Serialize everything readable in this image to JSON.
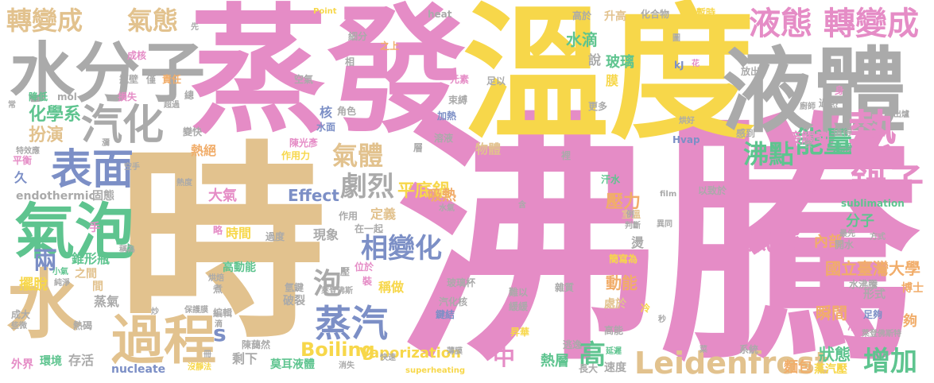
{
  "colors": {
    "pink": "#e58cc6",
    "yellow": "#f7d74a",
    "tan": "#e2c28e",
    "gray": "#aaaaaa",
    "blue": "#7c8fc6",
    "green": "#5ec48f",
    "orange": "#f1ad6a",
    "red": "#e9787a"
  },
  "words": [
    {
      "text": "時",
      "color": "tan"
    },
    {
      "text": "沸騰",
      "color": "pink"
    },
    {
      "text": "蒸發",
      "color": "pink"
    },
    {
      "text": "溫度",
      "color": "yellow"
    },
    {
      "text": "液體",
      "color": "gray"
    },
    {
      "text": "水分子",
      "color": "gray"
    },
    {
      "text": "水",
      "color": "tan"
    },
    {
      "text": "氣泡",
      "color": "green"
    },
    {
      "text": "表面",
      "color": "blue"
    },
    {
      "text": "汽化",
      "color": "gray"
    },
    {
      "text": "過程",
      "color": "tan"
    },
    {
      "text": "轉變成",
      "color": "tan"
    },
    {
      "text": "氣態",
      "color": "tan"
    },
    {
      "text": "液態",
      "color": "pink"
    },
    {
      "text": "轉變成",
      "color": "pink"
    },
    {
      "text": "熱",
      "color": "pink"
    },
    {
      "text": "鍋子",
      "color": "pink"
    },
    {
      "text": "能量",
      "color": "green"
    },
    {
      "text": "沸點",
      "color": "green"
    },
    {
      "text": "氣體",
      "color": "tan"
    },
    {
      "text": "劇烈",
      "color": "gray"
    },
    {
      "text": "蒸汽",
      "color": "blue"
    },
    {
      "text": "相變化",
      "color": "blue"
    },
    {
      "text": "氣態",
      "color": "pink"
    },
    {
      "text": "Leidenfrost",
      "color": "tan"
    },
    {
      "text": "增加",
      "color": "green"
    },
    {
      "text": "Boiling",
      "color": "yellow"
    },
    {
      "text": "Vaporization",
      "color": "yellow"
    },
    {
      "text": "Effect",
      "color": "blue"
    },
    {
      "text": "中",
      "color": "pink"
    },
    {
      "text": "高",
      "color": "green"
    },
    {
      "text": "s",
      "color": "blue"
    },
    {
      "text": "泡",
      "color": "gray"
    },
    {
      "text": "兩",
      "color": "blue"
    },
    {
      "text": "化學系",
      "color": "green"
    },
    {
      "text": "扮演",
      "color": "tan"
    },
    {
      "text": "平底鍋",
      "color": "yellow"
    },
    {
      "text": "國立臺灣大學",
      "color": "orange"
    },
    {
      "text": "壓力",
      "color": "orange"
    },
    {
      "text": "動能",
      "color": "orange"
    },
    {
      "text": "狀態",
      "color": "green"
    },
    {
      "text": "麵包",
      "color": "orange"
    },
    {
      "text": "蒸汽壓",
      "color": "yellow"
    },
    {
      "text": "接觸到",
      "color": "pink"
    },
    {
      "text": "水滴",
      "color": "green"
    },
    {
      "text": "玻璃",
      "color": "green"
    },
    {
      "text": "熱層",
      "color": "green"
    },
    {
      "text": "瞬間",
      "color": "orange"
    },
    {
      "text": "內部",
      "color": "orange"
    },
    {
      "text": "分子",
      "color": "green"
    },
    {
      "text": "吸熱",
      "color": "orange"
    },
    {
      "text": "時間",
      "color": "yellow"
    },
    {
      "text": "大氣",
      "color": "pink"
    },
    {
      "text": "錐形瓶",
      "color": "green"
    },
    {
      "text": "擺脫",
      "color": "yellow"
    },
    {
      "text": "蒸氣",
      "color": "gray"
    },
    {
      "text": "存活",
      "color": "gray"
    },
    {
      "text": "環境",
      "color": "green"
    },
    {
      "text": "外界",
      "color": "pink"
    },
    {
      "text": "nucleate",
      "color": "blue"
    },
    {
      "text": "endothermic",
      "color": "gray"
    },
    {
      "text": "sublimation",
      "color": "green"
    },
    {
      "text": "Hvap",
      "color": "blue"
    },
    {
      "text": "莫耳液體",
      "color": "green"
    },
    {
      "text": "剩下",
      "color": "gray"
    },
    {
      "text": "定義",
      "color": "tan"
    },
    {
      "text": "現象",
      "color": "gray"
    },
    {
      "text": "稱做",
      "color": "yellow"
    },
    {
      "text": "物體",
      "color": "tan"
    },
    {
      "text": "溶液",
      "color": "gray"
    },
    {
      "text": "升高",
      "color": "tan"
    },
    {
      "text": "化合物",
      "color": "gray"
    },
    {
      "text": "暫時",
      "color": "yellow"
    },
    {
      "text": "速度",
      "color": "gray"
    },
    {
      "text": "長大",
      "color": "gray"
    },
    {
      "text": "逃逸",
      "color": "gray"
    },
    {
      "text": "熱絕",
      "color": "orange"
    },
    {
      "text": "固態",
      "color": "gray"
    },
    {
      "text": "變快",
      "color": "gray"
    },
    {
      "text": "陳光彥",
      "color": "pink"
    },
    {
      "text": "作用力",
      "color": "yellow"
    },
    {
      "text": "高動能",
      "color": "green"
    },
    {
      "text": "破裂",
      "color": "gray"
    },
    {
      "text": "鍵結",
      "color": "blue"
    },
    {
      "text": "昇華",
      "color": "yellow"
    },
    {
      "text": "緩緩",
      "color": "gray"
    },
    {
      "text": "處於",
      "color": "tan"
    },
    {
      "text": "氣壓",
      "color": "pink"
    },
    {
      "text": "高能",
      "color": "gray"
    },
    {
      "text": "系統",
      "color": "gray"
    },
    {
      "text": "形式",
      "color": "gray"
    },
    {
      "text": "博士",
      "color": "orange"
    },
    {
      "text": "夠",
      "color": "orange"
    },
    {
      "text": "足夠",
      "color": "blue"
    },
    {
      "text": "液",
      "color": "pink"
    },
    {
      "text": "值得",
      "color": "gray"
    },
    {
      "text": "光滑",
      "color": "green"
    },
    {
      "text": "感到",
      "color": "gray"
    },
    {
      "text": "接觸面",
      "color": "pink"
    },
    {
      "text": "開水",
      "color": "gray"
    },
    {
      "text": "燙",
      "color": "gray"
    },
    {
      "text": "膜",
      "color": "yellow"
    },
    {
      "text": "說",
      "color": "gray"
    },
    {
      "text": "束縛",
      "color": "gray"
    },
    {
      "text": "加熱",
      "color": "blue"
    },
    {
      "text": "元素",
      "color": "pink"
    },
    {
      "text": "足以",
      "color": "gray"
    },
    {
      "text": "更多",
      "color": "gray"
    },
    {
      "text": "角色",
      "color": "gray"
    },
    {
      "text": "核",
      "color": "blue"
    },
    {
      "text": "水面",
      "color": "blue"
    },
    {
      "text": "空氣",
      "color": "gray"
    },
    {
      "text": "細分",
      "color": "gray"
    },
    {
      "text": "之上",
      "color": "orange"
    },
    {
      "text": "高於",
      "color": "gray"
    },
    {
      "text": "責任",
      "color": "orange"
    },
    {
      "text": "瓶壁",
      "color": "gray"
    },
    {
      "text": "成核",
      "color": "pink"
    },
    {
      "text": "降低",
      "color": "green"
    },
    {
      "text": "mol",
      "color": "gray"
    },
    {
      "text": "損失",
      "color": "pink"
    },
    {
      "text": "heat",
      "color": "gray"
    },
    {
      "text": "Point",
      "color": "yellow"
    },
    {
      "text": "kJ",
      "color": "blue"
    },
    {
      "text": "花",
      "color": "pink"
    },
    {
      "text": "放出",
      "color": "gray"
    },
    {
      "text": "過熱",
      "color": "gray"
    },
    {
      "text": "身",
      "color": "pink"
    },
    {
      "text": "作用",
      "color": "gray"
    },
    {
      "text": "在一起",
      "color": "gray"
    },
    {
      "text": "過度",
      "color": "gray"
    },
    {
      "text": "位於",
      "color": "pink"
    },
    {
      "text": "裝",
      "color": "pink"
    },
    {
      "text": "壓",
      "color": "gray"
    },
    {
      "text": "玻璃杯",
      "color": "gray"
    },
    {
      "text": "汽化核",
      "color": "gray"
    },
    {
      "text": "難以",
      "color": "gray"
    },
    {
      "text": "雜質",
      "color": "gray"
    },
    {
      "text": "簡寫為",
      "color": "yellow"
    },
    {
      "text": "冷",
      "color": "yellow"
    },
    {
      "text": "室溫",
      "color": "tan"
    },
    {
      "text": "例",
      "color": "gray"
    },
    {
      "text": "以致於",
      "color": "gray"
    },
    {
      "text": "異同",
      "color": "gray"
    },
    {
      "text": "手",
      "color": "pink"
    },
    {
      "text": "久",
      "color": "blue"
    },
    {
      "text": "平衡",
      "color": "pink"
    },
    {
      "text": "間",
      "color": "tan"
    },
    {
      "text": "之間",
      "color": "tan"
    },
    {
      "text": "小氣",
      "color": "green"
    },
    {
      "text": "純淨",
      "color": "gray"
    },
    {
      "text": "成大",
      "color": "gray"
    },
    {
      "text": "熱碣",
      "color": "gray"
    },
    {
      "text": "陳藹然",
      "color": "gray"
    },
    {
      "text": "煮",
      "color": "gray"
    },
    {
      "text": "編輯",
      "color": "gray"
    },
    {
      "text": "氫鍵",
      "color": "gray"
    },
    {
      "text": "層",
      "color": "gray"
    },
    {
      "text": "汗水",
      "color": "green"
    },
    {
      "text": "裡",
      "color": "gray"
    },
    {
      "text": "含",
      "color": "gray"
    },
    {
      "text": "film",
      "color": "gray"
    },
    {
      "text": "水沸騰",
      "color": "gray"
    },
    {
      "text": "superheating",
      "color": "yellow"
    },
    {
      "text": "快速",
      "color": "gray"
    },
    {
      "text": "薄膜",
      "color": "gray"
    },
    {
      "text": "延遲",
      "color": "green"
    },
    {
      "text": "消失",
      "color": "gray"
    },
    {
      "text": "沒靜法",
      "color": "yellow"
    },
    {
      "text": "需",
      "color": "orange"
    },
    {
      "text": "僅",
      "color": "gray"
    },
    {
      "text": "總",
      "color": "gray"
    },
    {
      "text": "相",
      "color": "gray"
    },
    {
      "text": "先",
      "color": "gray"
    },
    {
      "text": "烘好",
      "color": "gray"
    },
    {
      "text": "廚師",
      "color": "gray"
    },
    {
      "text": "快",
      "color": "gray"
    },
    {
      "text": "方式",
      "color": "gray"
    },
    {
      "text": "萊登佛斯特",
      "color": "gray"
    },
    {
      "text": "最先",
      "color": "gray"
    },
    {
      "text": "秒",
      "color": "gray"
    },
    {
      "text": "萊登佛斯",
      "color": "gray"
    },
    {
      "text": "出爐",
      "color": "gray"
    },
    {
      "text": "烘焙",
      "color": "gray"
    },
    {
      "text": "略",
      "color": "pink"
    },
    {
      "text": "稱為",
      "color": "gray"
    },
    {
      "text": "些微",
      "color": "gray"
    },
    {
      "text": "保護膜",
      "color": "gray"
    },
    {
      "text": "炒",
      "color": "gray"
    },
    {
      "text": "滴",
      "color": "gray"
    },
    {
      "text": "常",
      "color": "gray"
    },
    {
      "text": "特效應",
      "color": "gray"
    },
    {
      "text": "瀰",
      "color": "gray"
    },
    {
      "text": "空手",
      "color": "gray"
    },
    {
      "text": "熱度",
      "color": "gray"
    },
    {
      "text": "圖",
      "color": "gray"
    },
    {
      "text": "判斷",
      "color": "gray"
    },
    {
      "text": "水氣",
      "color": "gray"
    },
    {
      "text": "超過",
      "color": "gray"
    },
    {
      "text": "菜",
      "color": "gray"
    },
    {
      "text": "冊",
      "color": "gray"
    }
  ]
}
